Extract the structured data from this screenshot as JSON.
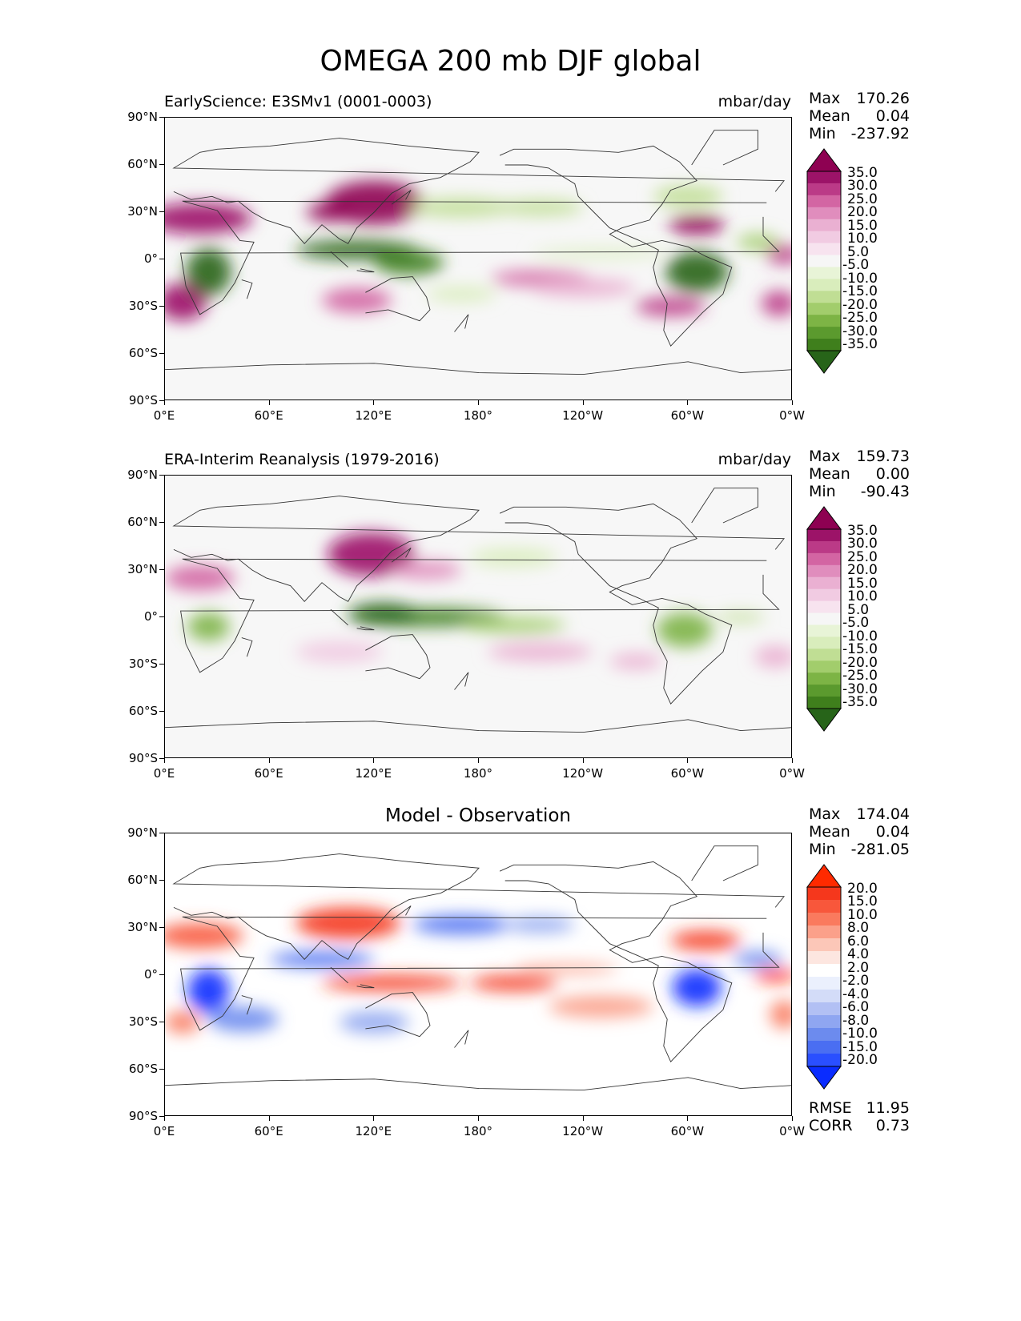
{
  "figure_title": "OMEGA 200 mb DJF global",
  "colors": {
    "piyg": [
      "#276419",
      "#3f7f1c",
      "#5b9a2e",
      "#7db445",
      "#a2cd6c",
      "#c0de94",
      "#d9edbc",
      "#e8f4d7",
      "#f6f6f6",
      "#f7e3ef",
      "#f1cbe2",
      "#eab0d2",
      "#e08dbd",
      "#d365a3",
      "#bb3a87",
      "#9c1368",
      "#8e0152"
    ],
    "bwr": [
      "#0a2cff",
      "#2a4fff",
      "#4a6ef2",
      "#6c8bee",
      "#8fa6f1",
      "#b2c0f4",
      "#d3dcf8",
      "#ebf0fd",
      "#ffffff",
      "#fde6e0",
      "#fcc7b8",
      "#fba08a",
      "#fa7a5e",
      "#f8573b",
      "#f5371c",
      "#ff2a00"
    ],
    "land_outline": "#333333"
  },
  "chart_data": [
    {
      "type": "heatmap",
      "title": "EarlyScience: E3SMv1 (0001-0003)",
      "units": "mbar/day",
      "stats": {
        "max_label": "Max",
        "max": "170.26",
        "mean_label": "Mean",
        "mean": "0.04",
        "min_label": "Min",
        "min": "-237.92"
      },
      "x_ticks": [
        "0°E",
        "60°E",
        "120°E",
        "180°",
        "120°W",
        "60°W",
        "0°W"
      ],
      "y_ticks": [
        "90°N",
        "60°N",
        "30°N",
        "0°",
        "30°S",
        "60°S",
        "90°S"
      ],
      "xlim": [
        0,
        360
      ],
      "ylim": [
        -90,
        90
      ],
      "colorbar_levels": [
        "35.0",
        "30.0",
        "25.0",
        "20.0",
        "15.0",
        "10.0",
        "5.0",
        "-5.0",
        "-10.0",
        "-15.0",
        "-20.0",
        "-25.0",
        "-30.0",
        "-35.0"
      ],
      "colormap": "piyg",
      "features": [
        {
          "lon": 20,
          "lat": 26,
          "rx": 30,
          "ry": 10,
          "v": 32
        },
        {
          "lon": 10,
          "lat": -27,
          "rx": 14,
          "ry": 12,
          "v": 30
        },
        {
          "lon": 120,
          "lat": 36,
          "rx": 28,
          "ry": 14,
          "v": 33
        },
        {
          "lon": 95,
          "lat": 30,
          "rx": 14,
          "ry": 6,
          "v": 36
        },
        {
          "lon": 110,
          "lat": 6,
          "rx": 35,
          "ry": 6,
          "v": -34
        },
        {
          "lon": 140,
          "lat": -2,
          "rx": 20,
          "ry": 8,
          "v": -32
        },
        {
          "lon": 25,
          "lat": -8,
          "rx": 13,
          "ry": 15,
          "v": -36
        },
        {
          "lon": 305,
          "lat": -8,
          "rx": 18,
          "ry": 13,
          "v": -36
        },
        {
          "lon": 170,
          "lat": 33,
          "rx": 30,
          "ry": 6,
          "v": -15
        },
        {
          "lon": 215,
          "lat": 33,
          "rx": 25,
          "ry": 5,
          "v": -12
        },
        {
          "lon": 300,
          "lat": 40,
          "rx": 20,
          "ry": 7,
          "v": -14
        },
        {
          "lon": 305,
          "lat": 22,
          "rx": 16,
          "ry": 6,
          "v": 36
        },
        {
          "lon": 340,
          "lat": 11,
          "rx": 12,
          "ry": 5,
          "v": -18
        },
        {
          "lon": 355,
          "lat": 3,
          "rx": 10,
          "ry": 6,
          "v": 26
        },
        {
          "lon": 110,
          "lat": -26,
          "rx": 20,
          "ry": 8,
          "v": 20
        },
        {
          "lon": 215,
          "lat": -12,
          "rx": 28,
          "ry": 5,
          "v": 20
        },
        {
          "lon": 290,
          "lat": -30,
          "rx": 20,
          "ry": 6,
          "v": 25
        },
        {
          "lon": 240,
          "lat": -18,
          "rx": 30,
          "ry": 6,
          "v": 14
        },
        {
          "lon": 170,
          "lat": -22,
          "rx": 20,
          "ry": 5,
          "v": -10
        },
        {
          "lon": 250,
          "lat": 4,
          "rx": 40,
          "ry": 3,
          "v": -10
        },
        {
          "lon": 352,
          "lat": -28,
          "rx": 10,
          "ry": 8,
          "v": 26
        }
      ]
    },
    {
      "type": "heatmap",
      "title": "ERA-Interim Reanalysis (1979-2016)",
      "units": "mbar/day",
      "stats": {
        "max_label": "Max",
        "max": "159.73",
        "mean_label": "Mean",
        "mean": "0.00",
        "min_label": "Min",
        "min": "-90.43"
      },
      "x_ticks": [
        "0°E",
        "60°E",
        "120°E",
        "180°",
        "120°W",
        "60°W",
        "0°W"
      ],
      "y_ticks": [
        "90°N",
        "60°N",
        "30°N",
        "0°",
        "30°S",
        "60°S",
        "90°S"
      ],
      "xlim": [
        0,
        360
      ],
      "ylim": [
        -90,
        90
      ],
      "colorbar_levels": [
        "35.0",
        "30.0",
        "25.0",
        "20.0",
        "15.0",
        "10.0",
        "5.0",
        "-5.0",
        "-10.0",
        "-15.0",
        "-20.0",
        "-25.0",
        "-30.0",
        "-35.0"
      ],
      "colormap": "piyg",
      "features": [
        {
          "lon": 118,
          "lat": 40,
          "rx": 25,
          "ry": 14,
          "v": 30
        },
        {
          "lon": 20,
          "lat": 25,
          "rx": 20,
          "ry": 8,
          "v": 22
        },
        {
          "lon": 150,
          "lat": 30,
          "rx": 20,
          "ry": 6,
          "v": 16
        },
        {
          "lon": 150,
          "lat": 0,
          "rx": 45,
          "ry": 6,
          "v": -30
        },
        {
          "lon": 125,
          "lat": 2,
          "rx": 20,
          "ry": 7,
          "v": -34
        },
        {
          "lon": 200,
          "lat": -5,
          "rx": 30,
          "ry": 5,
          "v": -18
        },
        {
          "lon": 25,
          "lat": -6,
          "rx": 12,
          "ry": 9,
          "v": -24
        },
        {
          "lon": 298,
          "lat": -8,
          "rx": 16,
          "ry": 11,
          "v": -24
        },
        {
          "lon": 200,
          "lat": 38,
          "rx": 25,
          "ry": 6,
          "v": -10
        },
        {
          "lon": 330,
          "lat": 0,
          "rx": 14,
          "ry": 3,
          "v": -12
        },
        {
          "lon": 215,
          "lat": -22,
          "rx": 30,
          "ry": 6,
          "v": 12
        },
        {
          "lon": 100,
          "lat": -22,
          "rx": 25,
          "ry": 7,
          "v": 10
        },
        {
          "lon": 270,
          "lat": -28,
          "rx": 15,
          "ry": 5,
          "v": 14
        },
        {
          "lon": 350,
          "lat": -25,
          "rx": 12,
          "ry": 7,
          "v": 14
        }
      ]
    },
    {
      "type": "heatmap",
      "title": "Model - Observation",
      "units": "",
      "stats": {
        "max_label": "Max",
        "max": "174.04",
        "mean_label": "Mean",
        "mean": "0.04",
        "min_label": "Min",
        "min": "-281.05"
      },
      "extra_stats": {
        "rmse_label": "RMSE",
        "rmse": "11.95",
        "corr_label": "CORR",
        "corr": "0.73"
      },
      "x_ticks": [
        "0°E",
        "60°E",
        "120°E",
        "180°",
        "120°W",
        "60°W",
        "0°W"
      ],
      "y_ticks": [
        "90°N",
        "60°N",
        "30°N",
        "0°",
        "30°S",
        "60°S",
        "90°S"
      ],
      "xlim": [
        0,
        360
      ],
      "ylim": [
        -90,
        90
      ],
      "colorbar_levels": [
        "20.0",
        "15.0",
        "10.0",
        "8.0",
        "6.0",
        "4.0",
        "2.0",
        "-2.0",
        "-4.0",
        "-6.0",
        "-8.0",
        "-10.0",
        "-15.0",
        "-20.0"
      ],
      "colormap": "bwr",
      "features": [
        {
          "lon": 20,
          "lat": 25,
          "rx": 25,
          "ry": 8,
          "v": 14
        },
        {
          "lon": 105,
          "lat": 33,
          "rx": 30,
          "ry": 10,
          "v": 18
        },
        {
          "lon": 170,
          "lat": 32,
          "rx": 28,
          "ry": 6,
          "v": -14
        },
        {
          "lon": 215,
          "lat": 32,
          "rx": 20,
          "ry": 5,
          "v": -10
        },
        {
          "lon": 130,
          "lat": -5,
          "rx": 40,
          "ry": 5,
          "v": 18
        },
        {
          "lon": 200,
          "lat": -5,
          "rx": 25,
          "ry": 5,
          "v": 16
        },
        {
          "lon": 25,
          "lat": -10,
          "rx": 12,
          "ry": 14,
          "v": -22
        },
        {
          "lon": 305,
          "lat": -8,
          "rx": 14,
          "ry": 12,
          "v": -22
        },
        {
          "lon": 90,
          "lat": 10,
          "rx": 30,
          "ry": 5,
          "v": -14
        },
        {
          "lon": 310,
          "lat": 22,
          "rx": 20,
          "ry": 6,
          "v": 16
        },
        {
          "lon": 340,
          "lat": 10,
          "rx": 14,
          "ry": 5,
          "v": -12
        },
        {
          "lon": 350,
          "lat": 0,
          "rx": 12,
          "ry": 4,
          "v": 20
        },
        {
          "lon": 45,
          "lat": -28,
          "rx": 20,
          "ry": 8,
          "v": -12
        },
        {
          "lon": 120,
          "lat": -30,
          "rx": 20,
          "ry": 7,
          "v": -10
        },
        {
          "lon": 250,
          "lat": -20,
          "rx": 30,
          "ry": 7,
          "v": 10
        },
        {
          "lon": 10,
          "lat": -30,
          "rx": 10,
          "ry": 7,
          "v": 12
        },
        {
          "lon": 230,
          "lat": 4,
          "rx": 30,
          "ry": 3,
          "v": 10
        },
        {
          "lon": 355,
          "lat": -25,
          "rx": 8,
          "ry": 9,
          "v": 12
        }
      ]
    }
  ]
}
